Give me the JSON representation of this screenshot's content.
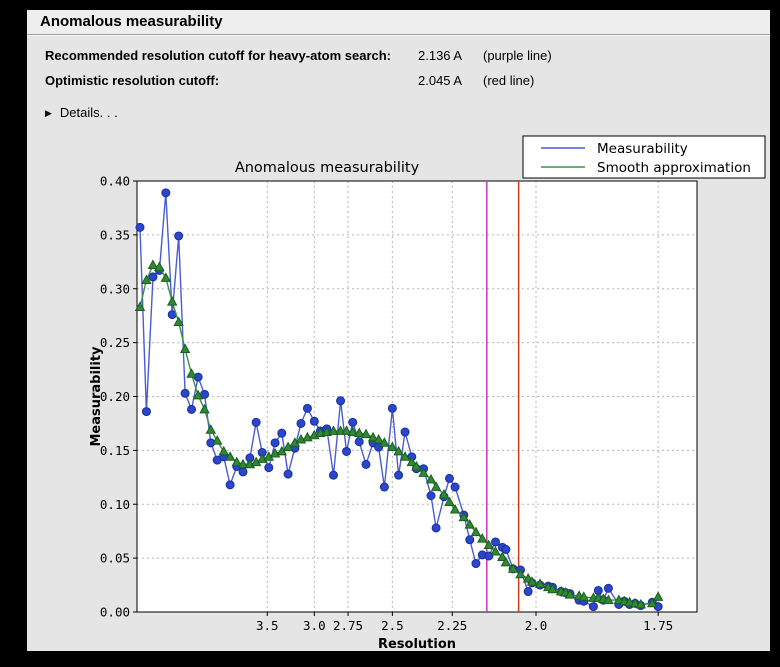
{
  "window": {
    "title": "Anomalous measurability"
  },
  "summary": {
    "rows": [
      {
        "label": "Recommended resolution cutoff for heavy-atom search:",
        "value": "2.136 A",
        "note": "(purple line)"
      },
      {
        "label": "Optimistic resolution cutoff:",
        "value": "2.045 A",
        "note": "(red line)"
      }
    ],
    "details_label": "Details. . .",
    "details_icon": "triangle-right"
  },
  "colors": {
    "panel_bg": "#e5e5e5",
    "titlebar_bg": "#eeeeee",
    "plot_bg": "#ffffff",
    "grid": "#b5b5b5",
    "measurability_line": "#4a5cd4",
    "measurability_marker": "#2b46cc",
    "measurability_marker_edge": "#16309c",
    "smooth_line": "#3f8f3f",
    "smooth_marker": "#2f8833",
    "smooth_marker_edge": "#1b5e1f",
    "purple_cutoff": "#c13ac1",
    "red_cutoff": "#cf3b16"
  },
  "chart_data": {
    "type": "line",
    "title": "Anomalous measurability",
    "xlabel": "Resolution",
    "ylabel": "Measurability",
    "x_transform": "1_over_d_squared",
    "x_ticks": [
      3.5,
      3.0,
      2.75,
      2.5,
      2.25,
      2.0,
      1.75
    ],
    "x_tick_labels": [
      "3.5",
      "3.0",
      "2.75",
      "2.5",
      "2.25",
      "2.0",
      "1.75"
    ],
    "ylim": [
      0.0,
      0.4
    ],
    "y_ticks": [
      0.0,
      0.05,
      0.1,
      0.15,
      0.2,
      0.25,
      0.3,
      0.35,
      0.4
    ],
    "y_tick_labels": [
      "0.00",
      "0.05",
      "0.10",
      "0.15",
      "0.20",
      "0.25",
      "0.30",
      "0.35",
      "0.40"
    ],
    "grid": true,
    "legend": {
      "position": "top-right",
      "entries": [
        {
          "label": "Measurability",
          "color": "#4a5cd4",
          "marker": "circle"
        },
        {
          "label": "Smooth approximation",
          "color": "#3f8f3f",
          "marker": "triangle"
        }
      ]
    },
    "vlines": [
      {
        "name": "purple-cutoff-line",
        "resolution_A": 2.136,
        "color": "#c13ac1"
      },
      {
        "name": "red-cutoff-line",
        "resolution_A": 2.045,
        "color": "#cf3b16"
      }
    ],
    "resolution_A": [
      23.1,
      13.0,
      10.0,
      8.45,
      7.44,
      6.73,
      6.19,
      5.76,
      5.41,
      5.11,
      4.86,
      4.65,
      4.46,
      4.29,
      4.14,
      4.0,
      3.88,
      3.76,
      3.66,
      3.57,
      3.48,
      3.4,
      3.32,
      3.25,
      3.18,
      3.12,
      3.06,
      3.0,
      2.95,
      2.9,
      2.85,
      2.8,
      2.76,
      2.72,
      2.68,
      2.64,
      2.6,
      2.57,
      2.54,
      2.5,
      2.47,
      2.44,
      2.41,
      2.39,
      2.36,
      2.33,
      2.31,
      2.28,
      2.26,
      2.24,
      2.21,
      2.19,
      2.17,
      2.15,
      2.13,
      2.11,
      2.09,
      2.08,
      2.06,
      2.04,
      2.02,
      2.01,
      1.99,
      1.97,
      1.96,
      1.94,
      1.93,
      1.92,
      1.9,
      1.89,
      1.87,
      1.86,
      1.85,
      1.84,
      1.82,
      1.81,
      1.8,
      1.79,
      1.78,
      1.76,
      1.75
    ],
    "series": [
      {
        "name": "Measurability",
        "marker": "circle",
        "values": [
          0.357,
          0.186,
          0.311,
          0.317,
          0.389,
          0.276,
          0.349,
          0.203,
          0.188,
          0.218,
          0.202,
          0.157,
          0.141,
          0.144,
          0.118,
          0.135,
          0.13,
          0.143,
          0.176,
          0.148,
          0.134,
          0.157,
          0.166,
          0.128,
          0.152,
          0.175,
          0.189,
          0.177,
          0.168,
          0.17,
          0.127,
          0.196,
          0.149,
          0.176,
          0.158,
          0.137,
          0.157,
          0.153,
          0.116,
          0.189,
          0.127,
          0.167,
          0.144,
          0.133,
          0.133,
          0.108,
          0.078,
          0.107,
          0.124,
          0.116,
          0.09,
          0.067,
          0.045,
          0.053,
          0.052,
          0.065,
          0.06,
          0.058,
          0.04,
          0.039,
          0.019,
          0.027,
          0.025,
          0.024,
          0.023,
          0.019,
          0.018,
          0.017,
          0.011,
          0.01,
          0.005,
          0.02,
          0.011,
          0.022,
          0.007,
          0.01,
          0.007,
          0.008,
          0.006,
          0.009,
          0.005
        ]
      },
      {
        "name": "Smooth approximation",
        "marker": "triangle",
        "values": [
          0.283,
          0.308,
          0.322,
          0.32,
          0.31,
          0.288,
          0.269,
          0.244,
          0.221,
          0.201,
          0.188,
          0.169,
          0.159,
          0.149,
          0.144,
          0.139,
          0.137,
          0.137,
          0.139,
          0.142,
          0.144,
          0.147,
          0.149,
          0.153,
          0.157,
          0.16,
          0.162,
          0.164,
          0.166,
          0.167,
          0.168,
          0.168,
          0.168,
          0.167,
          0.166,
          0.165,
          0.162,
          0.16,
          0.157,
          0.153,
          0.149,
          0.144,
          0.139,
          0.135,
          0.129,
          0.123,
          0.116,
          0.109,
          0.102,
          0.095,
          0.088,
          0.081,
          0.074,
          0.068,
          0.062,
          0.056,
          0.051,
          0.046,
          0.04,
          0.035,
          0.031,
          0.028,
          0.026,
          0.023,
          0.021,
          0.019,
          0.018,
          0.016,
          0.015,
          0.014,
          0.013,
          0.013,
          0.012,
          0.011,
          0.011,
          0.01,
          0.009,
          0.008,
          0.007,
          0.008,
          0.014
        ]
      }
    ]
  }
}
